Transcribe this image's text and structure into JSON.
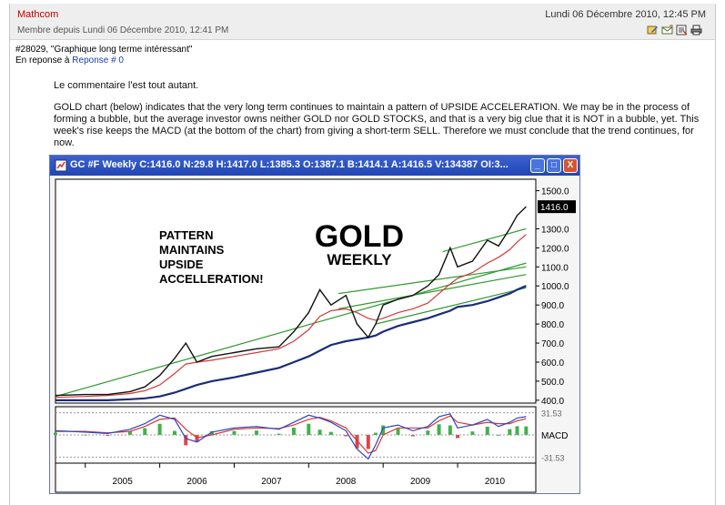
{
  "post": {
    "author": "Mathcom",
    "member_since": "Membre depuis Lundi 06 Décembre 2010, 12:41 PM",
    "date": "Lundi 06 Décembre 2010, 12:45 PM",
    "title_line": "#28029, \"Graphique long terme intéressant\"",
    "reply_prefix": "En reponse à",
    "reply_link": "Reponse # 0",
    "paragraph1": "Le commentaire l'est tout autant.",
    "paragraph2": "GOLD chart (below) indicates that the very long term continues to maintain a pattern of UPSIDE ACCELERATION. We may be in the process of forming a bubble, but the average investor owns neither GOLD nor GOLD STOCKS, and that is a very big clue that it is NOT in a bubble, yet. This week's rise keeps the MACD (at the bottom of the chart) from giving a short-term SELL. Therefore we must conclude that the trend continues, for now.",
    "icons": [
      "edit-icon",
      "reply-icon",
      "quote-icon",
      "print-icon"
    ]
  },
  "chart_window": {
    "title": "GC #F Weekly C:1416.0 N:29.8 H:1417.0 L:1385.3 O:1387.1 B:1414.1 A:1416.5 V:134387 OI:3...",
    "buttons": [
      "_",
      "□",
      "X"
    ]
  },
  "chart_data": {
    "type": "line",
    "title": "GOLD",
    "subtitle": "WEEKLY",
    "annotation": [
      "PATTERN",
      "MAINTAINS",
      "UPSIDE",
      "ACCELLERATION!"
    ],
    "x_labels": [
      "2005",
      "2006",
      "2007",
      "2008",
      "2009",
      "2010"
    ],
    "y_ticks": [
      "1500.0",
      "1300.0",
      "1200.0",
      "1100.0",
      "1000.0",
      "900.0",
      "800.0",
      "700.0",
      "600.0",
      "500.0",
      "400.0"
    ],
    "y_tick_values": [
      1500,
      1300,
      1200,
      1100,
      1000,
      900,
      800,
      700,
      600,
      500,
      400
    ],
    "last_price_label": "1416.0",
    "last_price": 1416,
    "ylim": [
      385,
      1560
    ],
    "x": [
      2004.6,
      2005.0,
      2005.3,
      2005.6,
      2005.8,
      2006.0,
      2006.2,
      2006.35,
      2006.5,
      2006.7,
      2007.0,
      2007.3,
      2007.6,
      2007.8,
      2008.0,
      2008.15,
      2008.3,
      2008.5,
      2008.65,
      2008.8,
      2008.9,
      2009.0,
      2009.2,
      2009.4,
      2009.6,
      2009.75,
      2009.9,
      2010.0,
      2010.2,
      2010.4,
      2010.55,
      2010.7,
      2010.8,
      2010.92
    ],
    "price": [
      425,
      430,
      430,
      445,
      470,
      530,
      620,
      700,
      600,
      630,
      650,
      670,
      680,
      760,
      860,
      980,
      900,
      950,
      800,
      730,
      800,
      900,
      930,
      950,
      1000,
      1060,
      1200,
      1100,
      1130,
      1240,
      1210,
      1300,
      1370,
      1416
    ],
    "ma_red": [
      415,
      420,
      425,
      435,
      450,
      480,
      540,
      590,
      600,
      610,
      630,
      650,
      670,
      710,
      770,
      840,
      870,
      880,
      860,
      830,
      820,
      830,
      860,
      880,
      910,
      960,
      1010,
      1040,
      1070,
      1120,
      1150,
      1190,
      1230,
      1270
    ],
    "ma_blue": [
      400,
      400,
      400,
      405,
      410,
      420,
      440,
      460,
      480,
      500,
      520,
      545,
      570,
      600,
      630,
      660,
      690,
      710,
      720,
      730,
      740,
      760,
      790,
      810,
      830,
      850,
      870,
      890,
      900,
      920,
      940,
      960,
      980,
      1000
    ],
    "trend_lines": [
      {
        "x1": 2004.6,
        "y1": 420,
        "x2": 2010.92,
        "y2": 1120
      },
      {
        "x1": 2008.4,
        "y1": 880,
        "x2": 2010.92,
        "y2": 1060
      },
      {
        "x1": 2008.4,
        "y1": 960,
        "x2": 2010.92,
        "y2": 1100
      },
      {
        "x1": 2009.8,
        "y1": 1180,
        "x2": 2010.92,
        "y2": 1300
      },
      {
        "x1": 2008.9,
        "y1": 800,
        "x2": 2010.92,
        "y2": 990
      }
    ],
    "macd": {
      "label": "MACD",
      "upper_label": "31.53",
      "lower_label": "-31.53",
      "range": [
        -40,
        40
      ],
      "fast": [
        6,
        4,
        2,
        8,
        16,
        28,
        22,
        -5,
        -10,
        4,
        10,
        12,
        8,
        18,
        28,
        24,
        18,
        6,
        -20,
        -34,
        -14,
        10,
        14,
        6,
        12,
        26,
        30,
        10,
        14,
        22,
        12,
        18,
        24,
        26
      ],
      "signal": [
        5,
        5,
        3,
        5,
        12,
        22,
        24,
        8,
        -4,
        0,
        8,
        10,
        9,
        14,
        22,
        25,
        20,
        10,
        -8,
        -26,
        -22,
        0,
        10,
        10,
        10,
        20,
        27,
        18,
        14,
        18,
        16,
        16,
        20,
        23
      ]
    }
  }
}
